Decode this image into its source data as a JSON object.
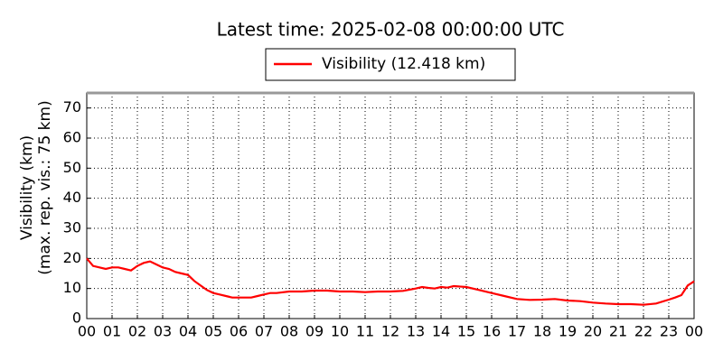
{
  "chart_data": {
    "type": "line",
    "title": "Latest time: 2025-02-08 00:00:00 UTC",
    "ylabel": [
      "Visibility (km)",
      "(max. rep. vis.: 75 km)"
    ],
    "x": [
      0,
      0.25,
      0.5,
      0.75,
      1,
      1.25,
      1.5,
      1.75,
      2,
      2.25,
      2.5,
      2.75,
      3,
      3.25,
      3.5,
      3.75,
      4,
      4.25,
      4.5,
      4.75,
      5,
      5.25,
      5.5,
      5.75,
      6,
      6.25,
      6.5,
      6.75,
      7,
      7.25,
      7.5,
      8,
      8.5,
      9,
      9.5,
      10,
      10.5,
      11,
      11.5,
      12,
      12.5,
      13,
      13.25,
      13.5,
      13.75,
      14,
      14.25,
      14.5,
      15,
      15.5,
      16,
      16.5,
      17,
      17.5,
      18,
      18.5,
      19,
      19.5,
      20,
      20.5,
      21,
      21.5,
      22,
      22.5,
      23,
      23.25,
      23.5,
      23.75,
      24
    ],
    "series": [
      {
        "name": "Visibility (12.418 km)",
        "color": "#ff0000",
        "values": [
          20,
          17.5,
          17,
          16.5,
          17,
          17,
          16.5,
          16,
          17.5,
          18.5,
          19,
          18,
          17,
          16.5,
          15.5,
          15,
          14.5,
          12.5,
          11,
          9.5,
          8.5,
          8,
          7.5,
          7,
          7,
          7,
          7,
          7.5,
          8,
          8.5,
          8.5,
          9,
          9,
          9.3,
          9.3,
          9,
          9,
          8.8,
          9,
          9,
          9.2,
          10,
          10.5,
          10.2,
          10,
          10.5,
          10.3,
          10.8,
          10.5,
          9.5,
          8.5,
          7.5,
          6.5,
          6.2,
          6.3,
          6.5,
          6,
          5.8,
          5.3,
          5,
          4.8,
          4.8,
          4.6,
          5,
          6.3,
          7,
          7.8,
          11,
          12.4
        ]
      }
    ],
    "xlim": [
      0,
      24
    ],
    "xticks": [
      {
        "value": 0,
        "label": "00"
      },
      {
        "value": 1,
        "label": "01"
      },
      {
        "value": 2,
        "label": "02"
      },
      {
        "value": 3,
        "label": "03"
      },
      {
        "value": 4,
        "label": "04"
      },
      {
        "value": 5,
        "label": "05"
      },
      {
        "value": 6,
        "label": "06"
      },
      {
        "value": 7,
        "label": "07"
      },
      {
        "value": 8,
        "label": "08"
      },
      {
        "value": 9,
        "label": "09"
      },
      {
        "value": 10,
        "label": "10"
      },
      {
        "value": 11,
        "label": "11"
      },
      {
        "value": 12,
        "label": "12"
      },
      {
        "value": 13,
        "label": "13"
      },
      {
        "value": 14,
        "label": "14"
      },
      {
        "value": 15,
        "label": "15"
      },
      {
        "value": 16,
        "label": "16"
      },
      {
        "value": 17,
        "label": "17"
      },
      {
        "value": 18,
        "label": "18"
      },
      {
        "value": 19,
        "label": "19"
      },
      {
        "value": 20,
        "label": "20"
      },
      {
        "value": 21,
        "label": "21"
      },
      {
        "value": 22,
        "label": "22"
      },
      {
        "value": 23,
        "label": "23"
      },
      {
        "value": 24,
        "label": "00"
      }
    ],
    "ylim": [
      0,
      75
    ],
    "yticks": [
      0,
      10,
      20,
      30,
      40,
      50,
      60,
      70
    ],
    "grid": true
  }
}
